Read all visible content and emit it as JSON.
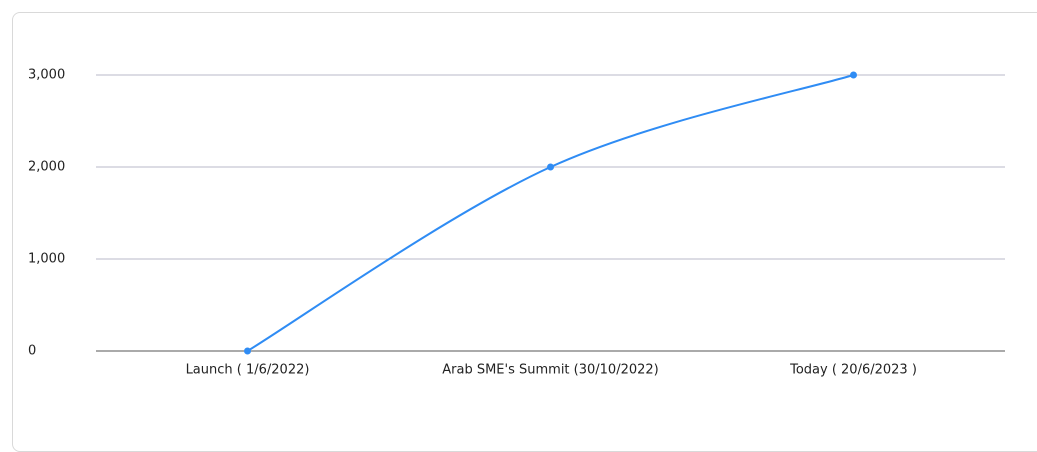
{
  "chart_data": {
    "type": "line",
    "categories": [
      "Launch ( 1/6/2022)",
      "Arab SME's Summit (30/10/2022)",
      "Today ( 20/6/2023 )"
    ],
    "values": [
      0,
      2000,
      3000
    ],
    "color": "#2f8cf4",
    "ylim": [
      0,
      3000
    ],
    "yticks": [
      0,
      {
        "value": 1000,
        "label": "1,000"
      },
      {
        "value": 2000,
        "label": "2,000"
      },
      {
        "value": 3000,
        "label": "3,000"
      }
    ],
    "grid": true
  }
}
